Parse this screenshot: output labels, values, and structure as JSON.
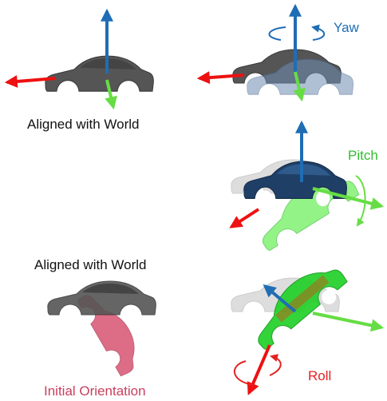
{
  "captions": {
    "top_left": "Aligned with World",
    "mid_left": "Aligned with World",
    "initial": "Initial Orientation"
  },
  "rotations": {
    "yaw": "Yaw",
    "pitch": "Pitch",
    "roll": "Roll"
  },
  "colors": {
    "car_gray": "#555555",
    "car_ghost": "#c9c9c9",
    "car_blue": "#1f3f66",
    "car_green": "#22d12a",
    "car_pink": "#d23c5f",
    "axis_red": "#ee1111",
    "axis_green": "#66dd44",
    "axis_blue": "#1f6db5",
    "yaw_text": "#1f6db5",
    "pitch_text": "#33bb33",
    "roll_text": "#e52222",
    "initial_text": "#c8405e"
  },
  "icons": [
    "car-shape",
    "x-axis-arrow",
    "y-axis-arrow",
    "z-axis-arrow",
    "rotation-arc-icon"
  ]
}
